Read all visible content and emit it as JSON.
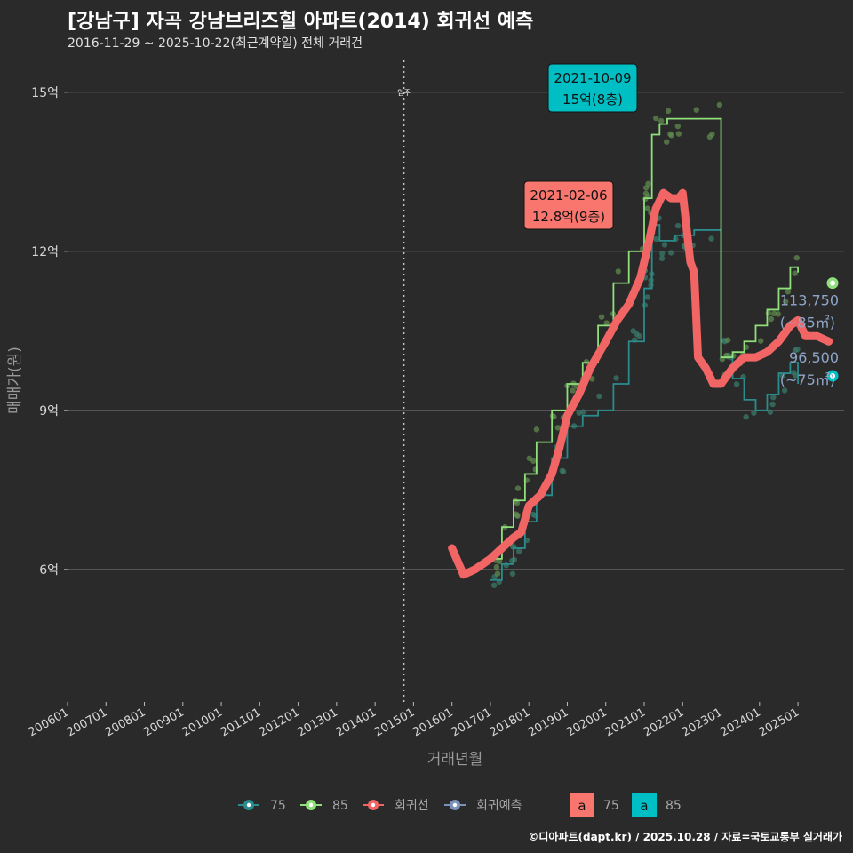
{
  "header": {
    "title": "[강남구] 자곡 강남브리즈힐 아파트(2014) 회귀선 예측",
    "subtitle": "2016-11-29 ~ 2025-10-22(최근계약일) 전체 거래건"
  },
  "credit": "©디아파트(dapt.kr) / 2025.10.28 / 자료=국토교통부 실거래가",
  "colors": {
    "bg": "#2a2a2b",
    "grid": "#6e6e6e",
    "s75": "#2a8c8c",
    "s85": "#8fe07a",
    "regression": "#f26565",
    "forecast": "#7b93b8",
    "label85": "#00bfc4",
    "label75": "#f8766d",
    "endLabel": "#8fa6c8"
  },
  "chart_data": {
    "type": "line",
    "title": "[강남구] 자곡 강남브리즈힐 아파트(2014) 회귀선 예측",
    "xlabel": "거래년월",
    "ylabel": "매매가(원)",
    "xlim": [
      2006.0,
      2026.2
    ],
    "ylim": [
      3.5,
      15.6
    ],
    "y_ticks": [
      6,
      9,
      12,
      15
    ],
    "y_tick_labels": [
      "6억",
      "9억",
      "12억",
      "15억"
    ],
    "x_ticks": [
      2006,
      2007,
      2008,
      2009,
      2010,
      2011,
      2012,
      2013,
      2014,
      2015,
      2016,
      2017,
      2018,
      2019,
      2020,
      2021,
      2022,
      2023,
      2024,
      2025
    ],
    "x_tick_labels": [
      "200601",
      "200701",
      "200801",
      "200901",
      "201001",
      "201101",
      "201201",
      "201301",
      "201401",
      "201501",
      "201601",
      "201701",
      "201801",
      "201901",
      "202001",
      "202101",
      "202201",
      "202301",
      "202401",
      "202501"
    ],
    "vline": {
      "x": 2014.75,
      "label": "입주"
    },
    "series": [
      {
        "name": "75",
        "type": "step",
        "x": [
          2017.0,
          2017.3,
          2017.6,
          2017.9,
          2018.2,
          2018.6,
          2019.0,
          2019.4,
          2019.8,
          2020.2,
          2020.6,
          2021.0,
          2021.2,
          2021.4,
          2021.6,
          2021.8,
          2022.0,
          2022.3,
          2023.0,
          2023.3,
          2023.6,
          2023.9,
          2024.2,
          2024.5,
          2024.8,
          2025.0
        ],
        "values": [
          5.8,
          6.1,
          6.4,
          6.9,
          7.4,
          8.1,
          8.7,
          8.9,
          9.0,
          9.5,
          10.3,
          11.3,
          12.5,
          12.2,
          12.2,
          12.3,
          12.3,
          12.4,
          10.0,
          9.6,
          9.2,
          9.0,
          9.3,
          9.7,
          9.9,
          9.5
        ]
      },
      {
        "name": "85",
        "type": "step",
        "x": [
          2017.0,
          2017.3,
          2017.6,
          2017.9,
          2018.2,
          2018.6,
          2019.0,
          2019.4,
          2019.8,
          2020.2,
          2020.6,
          2021.0,
          2021.2,
          2021.4,
          2021.6,
          2021.8,
          2022.0,
          2023.0,
          2023.3,
          2023.6,
          2023.9,
          2024.2,
          2024.5,
          2024.8,
          2025.0
        ],
        "values": [
          6.2,
          6.8,
          7.3,
          7.8,
          8.4,
          9.0,
          9.5,
          9.9,
          10.6,
          11.4,
          12.0,
          13.0,
          14.2,
          14.4,
          14.5,
          14.5,
          14.5,
          10.0,
          10.1,
          10.3,
          10.6,
          10.9,
          11.3,
          11.7,
          11.6
        ]
      },
      {
        "name": "회귀선",
        "type": "line",
        "x": [
          2016.0,
          2016.3,
          2016.6,
          2017.0,
          2017.3,
          2017.6,
          2017.8,
          2018.0,
          2018.3,
          2018.6,
          2018.8,
          2019.0,
          2019.3,
          2019.6,
          2020.0,
          2020.3,
          2020.6,
          2020.9,
          2021.1,
          2021.3,
          2021.5,
          2021.7,
          2021.9,
          2022.0,
          2022.2,
          2022.3,
          2022.4,
          2022.6,
          2022.8,
          2023.0,
          2023.3,
          2023.6,
          2023.9,
          2024.2,
          2024.5,
          2024.8,
          2025.0,
          2025.2,
          2025.5,
          2025.8
        ],
        "values": [
          6.4,
          5.9,
          6.0,
          6.2,
          6.4,
          6.6,
          6.7,
          7.2,
          7.4,
          7.8,
          8.3,
          8.9,
          9.3,
          9.8,
          10.3,
          10.7,
          11.0,
          11.5,
          12.1,
          12.8,
          13.1,
          13.0,
          13.0,
          13.1,
          11.8,
          11.6,
          10.0,
          9.8,
          9.5,
          9.5,
          9.8,
          10.0,
          10.0,
          10.1,
          10.3,
          10.6,
          10.7,
          10.4,
          10.4,
          10.3
        ]
      },
      {
        "name": "회귀예측",
        "type": "point",
        "x": [
          2025.9,
          2025.9
        ],
        "values": [
          11.4,
          9.65
        ]
      }
    ],
    "highlights": [
      {
        "date": "2021-10-09",
        "price": "15억(8층)",
        "area": "85",
        "x": 2021.77,
        "y": 15.0
      },
      {
        "date": "2021-02-06",
        "price": "12.8억(9층)",
        "area": "75",
        "x": 2021.1,
        "y": 12.8
      }
    ],
    "end_labels": [
      {
        "value": "113,750",
        "area": "(~85㎡)",
        "y": 11.4
      },
      {
        "value": "96,500",
        "area": "(~75㎡)",
        "y": 9.65
      }
    ],
    "legend": {
      "position": "bottom",
      "items": [
        "75",
        "85",
        "회귀선",
        "회귀예측"
      ],
      "label_items": [
        {
          "glyph": "a",
          "label": "75"
        },
        {
          "glyph": "a",
          "label": "85"
        }
      ]
    }
  }
}
